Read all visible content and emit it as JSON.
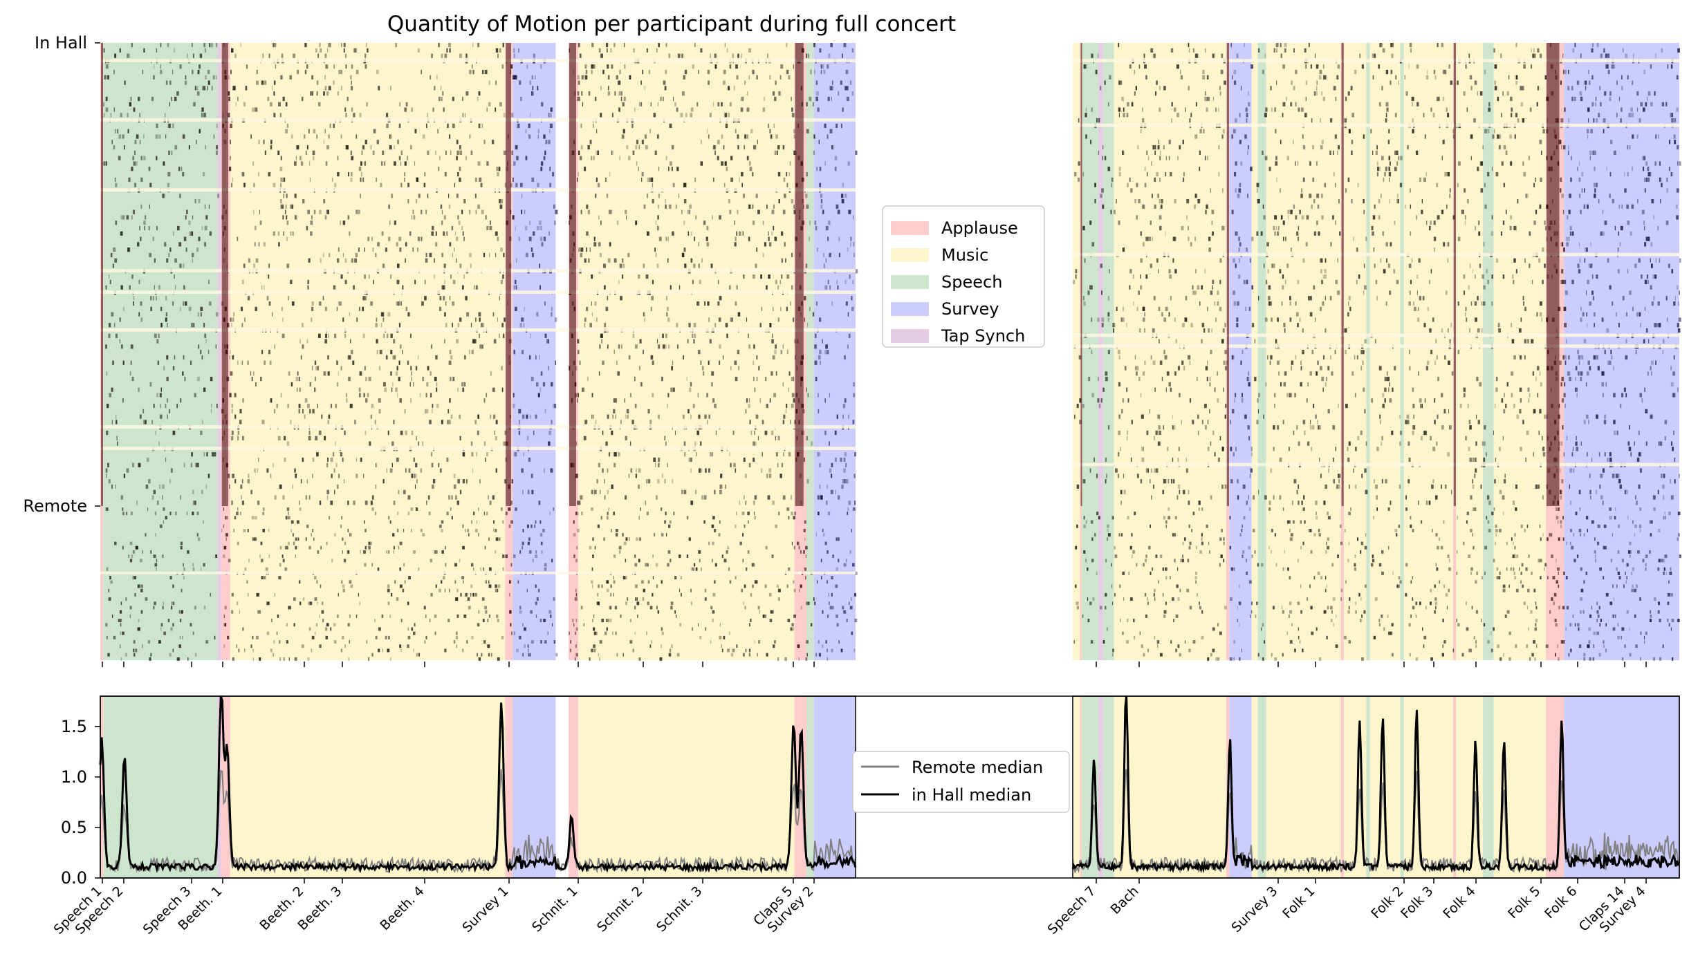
{
  "chart_data": {
    "type": "heatmap",
    "title": "Quantity of Motion per participant during full concert",
    "colors": {
      "Applause": "#ffcccc",
      "Music": "#fff5cc",
      "Speech": "#cce5cc",
      "Survey": "#ccccff",
      "Tap Synch": "#e5cce5"
    },
    "legend_top": {
      "placement": "center",
      "entries": [
        "Applause",
        "Music",
        "Speech",
        "Survey",
        "Tap Synch"
      ]
    },
    "heatmap": {
      "y_ticks": [
        "In Hall",
        "Remote"
      ],
      "in_hall_rows": 86,
      "remote_rows": 36
    },
    "median_plot": {
      "ylim": [
        0,
        1.8
      ],
      "yticks": [
        0.0,
        0.5,
        1.0,
        1.5
      ],
      "ytick_labels": [
        "0.0",
        "0.5",
        "1.0",
        "1.5"
      ],
      "legend": {
        "placement": "center",
        "entries": [
          {
            "name": "Remote median",
            "color": "#808080"
          },
          {
            "name": "in Hall median",
            "color": "#000000"
          }
        ]
      }
    },
    "event_labels": [
      "Speech 1",
      "Speech 2",
      "Speech 3",
      "Beeth. 1",
      "Beeth. 2",
      "Beeth. 3",
      "Beeth. 4",
      "Survey 1",
      "Schnit. 1",
      "Schnit. 2",
      "Schnit. 3",
      "Claps 5",
      "Survey 2",
      "Speech 7",
      "Bach",
      "Survey 3",
      "Folk 1",
      "Folk 2",
      "Folk 3",
      "Folk 4",
      "Folk 5",
      "Folk 6",
      "Claps 14",
      "Survey 4"
    ],
    "segments": [
      {
        "s": 0,
        "e": 0.004,
        "t": "Applause"
      },
      {
        "s": 0.004,
        "e": 0.155,
        "t": "Speech"
      },
      {
        "s": 0.155,
        "e": 0.16,
        "t": "Tap Synch"
      },
      {
        "s": 0.16,
        "e": 0.172,
        "t": "Applause"
      },
      {
        "s": 0.172,
        "e": 0.536,
        "t": "Music"
      },
      {
        "s": 0.536,
        "e": 0.546,
        "t": "Applause"
      },
      {
        "s": 0.546,
        "e": 0.603,
        "t": "Survey"
      },
      {
        "s": 0.62,
        "e": 0.633,
        "t": "Applause"
      },
      {
        "s": 0.633,
        "e": 0.919,
        "t": "Music"
      },
      {
        "s": 0.919,
        "e": 0.935,
        "t": "Applause"
      },
      {
        "s": 0.935,
        "e": 0.945,
        "t": "Speech"
      },
      {
        "s": 0.945,
        "e": 1.0,
        "t": "Survey"
      }
    ],
    "segments_right": [
      {
        "s": 0,
        "e": 0.012,
        "t": "Music"
      },
      {
        "s": 0.012,
        "e": 0.015,
        "t": "Applause"
      },
      {
        "s": 0.015,
        "e": 0.042,
        "t": "Speech"
      },
      {
        "s": 0.042,
        "e": 0.05,
        "t": "Tap Synch"
      },
      {
        "s": 0.05,
        "e": 0.068,
        "t": "Speech"
      },
      {
        "s": 0.068,
        "e": 0.253,
        "t": "Music"
      },
      {
        "s": 0.253,
        "e": 0.258,
        "t": "Applause"
      },
      {
        "s": 0.258,
        "e": 0.295,
        "t": "Survey"
      },
      {
        "s": 0.295,
        "e": 0.305,
        "t": "Music"
      },
      {
        "s": 0.305,
        "e": 0.319,
        "t": "Speech"
      },
      {
        "s": 0.319,
        "e": 0.442,
        "t": "Music"
      },
      {
        "s": 0.442,
        "e": 0.447,
        "t": "Applause"
      },
      {
        "s": 0.447,
        "e": 0.484,
        "t": "Music"
      },
      {
        "s": 0.484,
        "e": 0.49,
        "t": "Speech"
      },
      {
        "s": 0.49,
        "e": 0.54,
        "t": "Music"
      },
      {
        "s": 0.54,
        "e": 0.546,
        "t": "Speech"
      },
      {
        "s": 0.546,
        "e": 0.627,
        "t": "Music"
      },
      {
        "s": 0.627,
        "e": 0.632,
        "t": "Applause"
      },
      {
        "s": 0.632,
        "e": 0.676,
        "t": "Music"
      },
      {
        "s": 0.676,
        "e": 0.694,
        "t": "Speech"
      },
      {
        "s": 0.694,
        "e": 0.78,
        "t": "Music"
      },
      {
        "s": 0.78,
        "e": 0.81,
        "t": "Applause"
      },
      {
        "s": 0.81,
        "e": 1.0,
        "t": "Survey"
      }
    ],
    "peaks_hall": [
      {
        "x": 0.002,
        "y": 1.28
      },
      {
        "x": 0.032,
        "y": 1.08
      },
      {
        "x": 0.16,
        "y": 1.78
      },
      {
        "x": 0.168,
        "y": 1.18
      },
      {
        "x": 0.531,
        "y": 1.66
      },
      {
        "x": 0.624,
        "y": 0.5
      },
      {
        "x": 0.918,
        "y": 1.46
      },
      {
        "x": 0.928,
        "y": 1.42
      }
    ],
    "peaks_right": [
      {
        "x": 0.035,
        "y": 1.1
      },
      {
        "x": 0.088,
        "y": 1.78
      },
      {
        "x": 0.259,
        "y": 1.2
      },
      {
        "x": 0.473,
        "y": 1.43
      },
      {
        "x": 0.511,
        "y": 1.49
      },
      {
        "x": 0.567,
        "y": 1.59
      },
      {
        "x": 0.664,
        "y": 1.27
      },
      {
        "x": 0.711,
        "y": 1.28
      },
      {
        "x": 0.806,
        "y": 1.48
      }
    ]
  }
}
